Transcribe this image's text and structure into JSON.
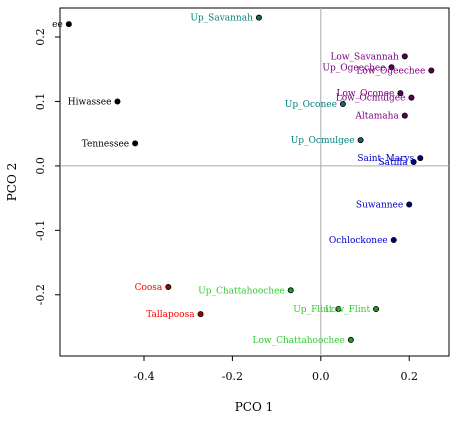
{
  "chart_data": {
    "type": "scatter",
    "title": "",
    "xlabel": "PCO 1",
    "ylabel": "PCO 2",
    "xlim": [
      -0.59,
      0.29
    ],
    "ylim": [
      -0.295,
      0.245
    ],
    "x_ticks": [
      -0.4,
      -0.2,
      0.0,
      0.2
    ],
    "y_ticks": [
      -0.2,
      -0.1,
      0.0,
      0.1,
      0.2
    ],
    "x_tick_labels": [
      "-0.4",
      "-0.2",
      "0.0",
      "0.2"
    ],
    "y_tick_labels": [
      "-0.2",
      "-0.1",
      "0.0",
      "0.1",
      "0.2"
    ],
    "reference_lines": {
      "x": 0,
      "y": 0
    },
    "grid": false,
    "points": [
      {
        "label": "ee",
        "x": -0.57,
        "y": 0.22,
        "color": "#000000",
        "fill": "#000000",
        "anchor": "end"
      },
      {
        "label": "Hiwassee",
        "x": -0.46,
        "y": 0.1,
        "color": "#000000",
        "fill": "#000000",
        "anchor": "end"
      },
      {
        "label": "Tennessee",
        "x": -0.42,
        "y": 0.035,
        "color": "#000000",
        "fill": "#000000",
        "anchor": "end"
      },
      {
        "label": "Up_Savannah",
        "x": -0.14,
        "y": 0.23,
        "color": "#008080",
        "fill": "#0f6c5c",
        "anchor": "end"
      },
      {
        "label": "Up_Oconee",
        "x": 0.05,
        "y": 0.096,
        "color": "#008080",
        "fill": "#0f6c5c",
        "anchor": "end"
      },
      {
        "label": "Up_Ocmulgee",
        "x": 0.09,
        "y": 0.04,
        "color": "#008080",
        "fill": "#0f6c5c",
        "anchor": "end"
      },
      {
        "label": "Low_Savannah",
        "x": 0.19,
        "y": 0.17,
        "color": "#800080",
        "fill": "#5a005a",
        "anchor": "end"
      },
      {
        "label": "Up_Ogeechee",
        "x": 0.16,
        "y": 0.153,
        "color": "#800080",
        "fill": "#5a005a",
        "anchor": "end"
      },
      {
        "label": "Low_Ogeechee",
        "x": 0.25,
        "y": 0.148,
        "color": "#800080",
        "fill": "#5a005a",
        "anchor": "end"
      },
      {
        "label": "Low_Oconee",
        "x": 0.18,
        "y": 0.113,
        "color": "#800080",
        "fill": "#5a005a",
        "anchor": "end"
      },
      {
        "label": "Low_Ocmulgee",
        "x": 0.205,
        "y": 0.106,
        "color": "#800080",
        "fill": "#5a005a",
        "anchor": "end"
      },
      {
        "label": "Altamaha",
        "x": 0.19,
        "y": 0.078,
        "color": "#800080",
        "fill": "#5a005a",
        "anchor": "end"
      },
      {
        "label": "Saint_Marys",
        "x": 0.225,
        "y": 0.012,
        "color": "#0000cd",
        "fill": "#000080",
        "anchor": "end"
      },
      {
        "label": "Satilla",
        "x": 0.21,
        "y": 0.006,
        "color": "#0000cd",
        "fill": "#000080",
        "anchor": "end"
      },
      {
        "label": "Suwannee",
        "x": 0.2,
        "y": -0.06,
        "color": "#0000cd",
        "fill": "#000080",
        "anchor": "end"
      },
      {
        "label": "Ochlockonee",
        "x": 0.165,
        "y": -0.115,
        "color": "#0000cd",
        "fill": "#000080",
        "anchor": "end"
      },
      {
        "label": "Coosa",
        "x": -0.345,
        "y": -0.188,
        "color": "#ff0000",
        "fill": "#a00000",
        "anchor": "end"
      },
      {
        "label": "Tallapoosa",
        "x": -0.272,
        "y": -0.23,
        "color": "#ff0000",
        "fill": "#a00000",
        "anchor": "end"
      },
      {
        "label": "Up_Chattahoochee",
        "x": -0.068,
        "y": -0.193,
        "color": "#32cd32",
        "fill": "#229922",
        "anchor": "end"
      },
      {
        "label": "Up_Flint",
        "x": 0.04,
        "y": -0.222,
        "color": "#32cd32",
        "fill": "#229922",
        "anchor": "end"
      },
      {
        "label": "Low_Flint",
        "x": 0.125,
        "y": -0.222,
        "color": "#32cd32",
        "fill": "#229922",
        "anchor": "end"
      },
      {
        "label": "Low_Chattahoochee",
        "x": 0.068,
        "y": -0.27,
        "color": "#32cd32",
        "fill": "#229922",
        "anchor": "end"
      }
    ]
  }
}
